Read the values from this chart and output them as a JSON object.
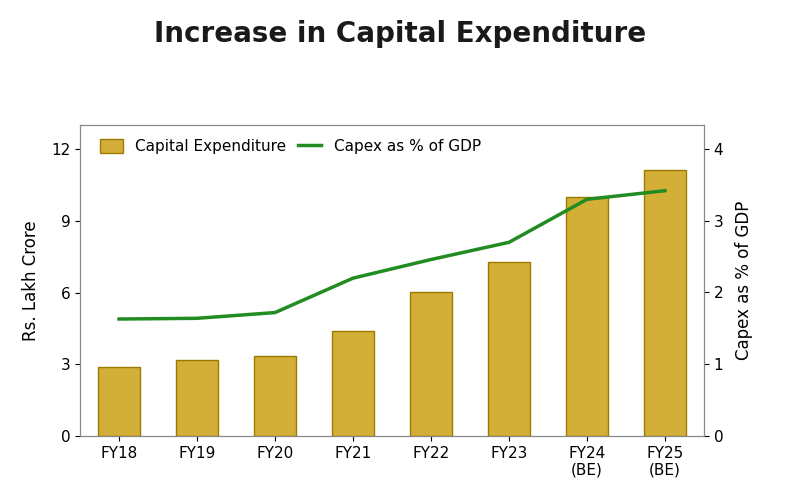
{
  "title": "Increase in Capital Expenditure",
  "categories": [
    "FY18",
    "FY19",
    "FY20",
    "FY21",
    "FY22",
    "FY23",
    "FY24\n(BE)",
    "FY25\n(BE)"
  ],
  "capex_values": [
    2.87,
    3.17,
    3.36,
    4.39,
    6.03,
    7.28,
    10.0,
    11.11
  ],
  "gdp_pct": [
    1.63,
    1.64,
    1.72,
    2.2,
    2.46,
    2.7,
    3.3,
    3.42
  ],
  "bar_color": "#D4AF37",
  "bar_edge_color": "#9A7B00",
  "line_color": "#228B22",
  "ylabel_left": "Rs. Lakh Crore",
  "ylabel_right": "Capex as % of GDP",
  "ylim_left": [
    0,
    13
  ],
  "ylim_right": [
    0,
    4.333
  ],
  "yticks_left": [
    0,
    3,
    6,
    9,
    12
  ],
  "yticks_right": [
    0,
    1,
    2,
    3,
    4
  ],
  "legend_bar_label": "Capital Expenditure",
  "legend_line_label": "Capex as % of GDP",
  "title_fontsize": 20,
  "label_fontsize": 12,
  "tick_fontsize": 11,
  "legend_fontsize": 11,
  "background_color": "#FFFFFF",
  "plot_bg_color": "#FFFFFF",
  "border_color": "#888888"
}
